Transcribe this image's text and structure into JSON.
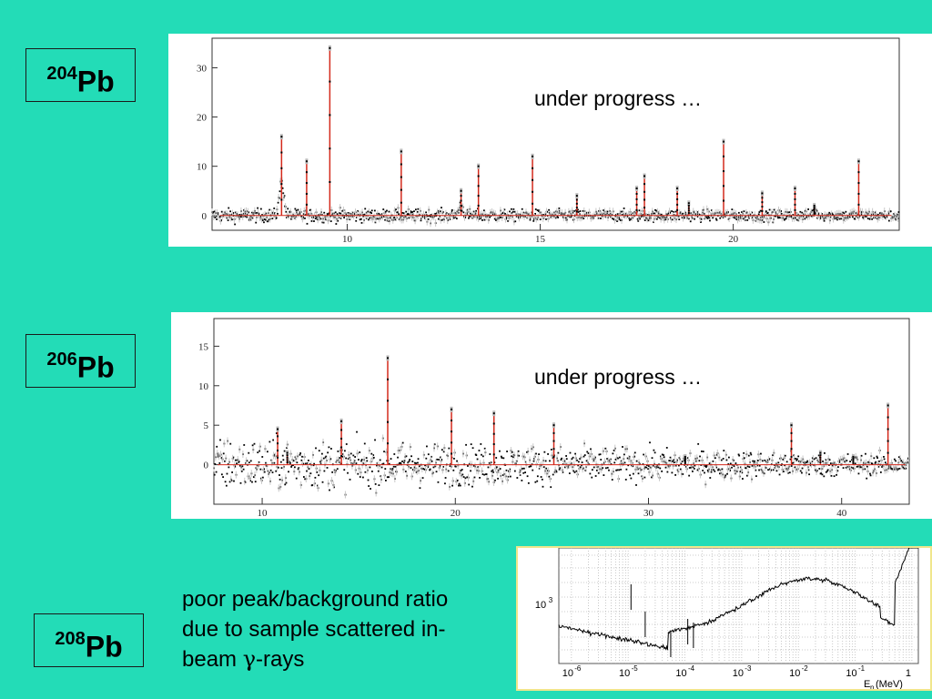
{
  "labels": [
    {
      "mass": "204",
      "element": "Pb"
    },
    {
      "mass": "206",
      "element": "Pb"
    },
    {
      "mass": "208",
      "element": "Pb"
    }
  ],
  "notes": [
    "under progress …",
    "under progress …"
  ],
  "caption": {
    "line1": "poor peak/background ratio",
    "line2": "due to sample scattered in-",
    "line3_prefix": "beam ",
    "line3_symbol": "γ",
    "line3_suffix": "-rays"
  },
  "colors": {
    "background": "#23dcb7",
    "fit": "#d42a1c",
    "data": "#000000",
    "frame3": "#f0e68c"
  },
  "chart_data": [
    {
      "type": "line",
      "xlim": [
        6.5,
        24.3
      ],
      "ylim": [
        -3,
        36
      ],
      "x_ticks": [
        10,
        15,
        20
      ],
      "y_ticks": [
        0,
        10,
        20,
        30
      ],
      "peaks": [
        {
          "x": 8.3,
          "y": 16
        },
        {
          "x": 8.95,
          "y": 11
        },
        {
          "x": 9.55,
          "y": 34
        },
        {
          "x": 11.4,
          "y": 13
        },
        {
          "x": 12.95,
          "y": 5
        },
        {
          "x": 13.4,
          "y": 10
        },
        {
          "x": 14.8,
          "y": 12
        },
        {
          "x": 15.95,
          "y": 4
        },
        {
          "x": 17.5,
          "y": 5.5
        },
        {
          "x": 17.7,
          "y": 8
        },
        {
          "x": 18.55,
          "y": 5.5
        },
        {
          "x": 18.85,
          "y": 2.5
        },
        {
          "x": 19.75,
          "y": 15
        },
        {
          "x": 20.75,
          "y": 4.5
        },
        {
          "x": 21.6,
          "y": 5.5
        },
        {
          "x": 22.1,
          "y": 2
        },
        {
          "x": 23.25,
          "y": 11
        }
      ]
    },
    {
      "type": "line",
      "xlim": [
        7.5,
        43.5
      ],
      "ylim": [
        -5,
        18.5
      ],
      "x_ticks": [
        10,
        20,
        30,
        40
      ],
      "y_ticks": [
        0,
        5,
        10,
        15
      ],
      "peaks": [
        {
          "x": 10.8,
          "y": 4.5
        },
        {
          "x": 11.3,
          "y": 1.5
        },
        {
          "x": 14.1,
          "y": 5.5
        },
        {
          "x": 16.5,
          "y": 13.5
        },
        {
          "x": 19.8,
          "y": 7
        },
        {
          "x": 22,
          "y": 6.5
        },
        {
          "x": 25.1,
          "y": 5
        },
        {
          "x": 31.9,
          "y": 1
        },
        {
          "x": 37.4,
          "y": 5
        },
        {
          "x": 38.9,
          "y": 1.5
        },
        {
          "x": 40.6,
          "y": 1
        },
        {
          "x": 42.4,
          "y": 7.5
        }
      ]
    },
    {
      "type": "line",
      "x_scale": "log",
      "y_scale": "log",
      "xlim": [
        6e-07,
        1.3
      ],
      "x_ticks": [
        "10",
        "10",
        "10",
        "10",
        "10",
        "10",
        "1"
      ],
      "x_tick_exponents": [
        "-6",
        "-5",
        "-4",
        "-3",
        "-2",
        "-1",
        ""
      ],
      "y_tick_label": "10",
      "y_tick_exponent": "3",
      "xlabel_prefix": "E",
      "xlabel_sub": "n",
      "xlabel_suffix": " (MeV)",
      "grid": true
    }
  ]
}
